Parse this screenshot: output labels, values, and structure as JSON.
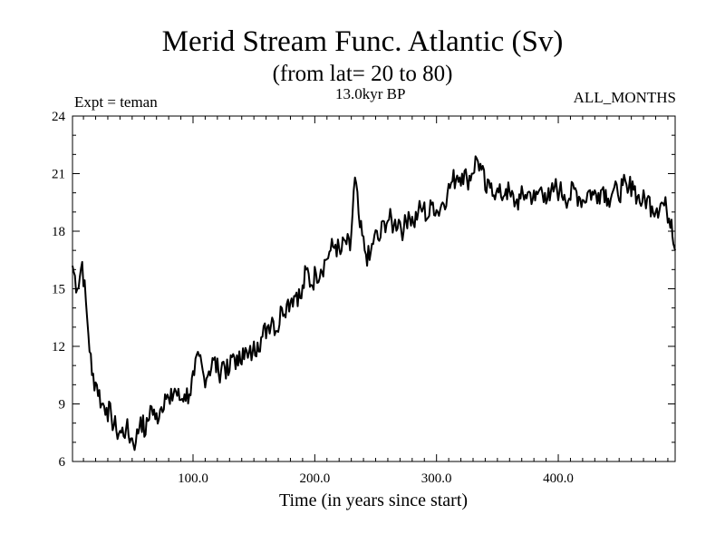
{
  "chart_data": {
    "type": "line",
    "title": "Merid Stream Func. Atlantic (Sv)",
    "subtitle": "(from lat= 20 to 80)",
    "annotations": {
      "left": "Expt = teman",
      "center": "13.0kyr BP",
      "right": "ALL_MONTHS"
    },
    "xlabel": "Time (in years since start)",
    "ylabel": "",
    "xlim": [
      1,
      496
    ],
    "ylim": [
      6,
      24
    ],
    "xticks": [
      100,
      200,
      300,
      400
    ],
    "xtick_labels": [
      "100.0",
      "200.0",
      "300.0",
      "400.0"
    ],
    "yticks": [
      6,
      9,
      12,
      15,
      18,
      21,
      24
    ],
    "ytick_labels": [
      "6",
      "9",
      "12",
      "15",
      "18",
      "21",
      "24"
    ],
    "grid": false,
    "series": [
      {
        "name": "Merid Stream Func. Atlantic",
        "x": [
          1,
          5,
          9,
          13,
          17,
          21,
          25,
          29,
          33,
          37,
          41,
          45,
          49,
          53,
          57,
          61,
          65,
          69,
          73,
          77,
          81,
          85,
          89,
          93,
          97,
          101,
          105,
          109,
          113,
          117,
          121,
          125,
          129,
          133,
          137,
          141,
          145,
          149,
          153,
          157,
          161,
          165,
          169,
          173,
          177,
          181,
          185,
          189,
          193,
          197,
          201,
          205,
          209,
          213,
          217,
          221,
          225,
          229,
          233,
          237,
          241,
          245,
          249,
          253,
          257,
          261,
          265,
          269,
          273,
          277,
          281,
          285,
          289,
          293,
          297,
          301,
          305,
          309,
          313,
          317,
          321,
          325,
          329,
          333,
          337,
          341,
          345,
          349,
          353,
          357,
          361,
          365,
          369,
          373,
          377,
          381,
          385,
          389,
          393,
          397,
          401,
          405,
          409,
          413,
          417,
          421,
          425,
          429,
          433,
          437,
          441,
          445,
          449,
          453,
          457,
          461,
          465,
          469,
          473,
          477,
          481,
          485,
          489,
          493,
          496
        ],
        "values": [
          16.2,
          15.0,
          16.4,
          13.5,
          10.5,
          10.0,
          9.0,
          8.8,
          8.3,
          7.6,
          7.5,
          7.7,
          7.2,
          7.0,
          8.3,
          7.4,
          8.9,
          8.2,
          8.7,
          9.5,
          9.0,
          9.8,
          9.2,
          9.5,
          9.5,
          10.5,
          11.5,
          10.4,
          10.7,
          11.3,
          10.6,
          11.2,
          10.5,
          11.6,
          11.0,
          11.9,
          11.4,
          11.7,
          12.2,
          12.5,
          13.0,
          13.5,
          12.8,
          14.0,
          14.2,
          14.5,
          14.8,
          14.5,
          16.0,
          15.2,
          15.8,
          16.0,
          16.5,
          17.0,
          17.3,
          16.8,
          17.5,
          17.0,
          20.8,
          18.2,
          17.0,
          16.5,
          17.8,
          17.5,
          18.5,
          18.6,
          18.3,
          18.6,
          18.0,
          19.0,
          18.4,
          19.0,
          19.2,
          18.7,
          19.5,
          19.0,
          19.5,
          20.0,
          20.6,
          20.9,
          21.0,
          20.7,
          21.0,
          21.8,
          21.2,
          20.0,
          20.5,
          20.0,
          19.8,
          20.2,
          19.8,
          19.5,
          19.7,
          19.9,
          20.0,
          19.6,
          20.2,
          20.0,
          19.6,
          20.3,
          20.1,
          19.9,
          19.7,
          20.2,
          19.8,
          19.6,
          20.1,
          19.9,
          20.0,
          20.3,
          19.7,
          20.1,
          19.9,
          20.4,
          20.0,
          20.6,
          19.8,
          19.5,
          19.7,
          19.3,
          19.2,
          19.5,
          19.1,
          18.6,
          17.0
        ]
      }
    ]
  }
}
